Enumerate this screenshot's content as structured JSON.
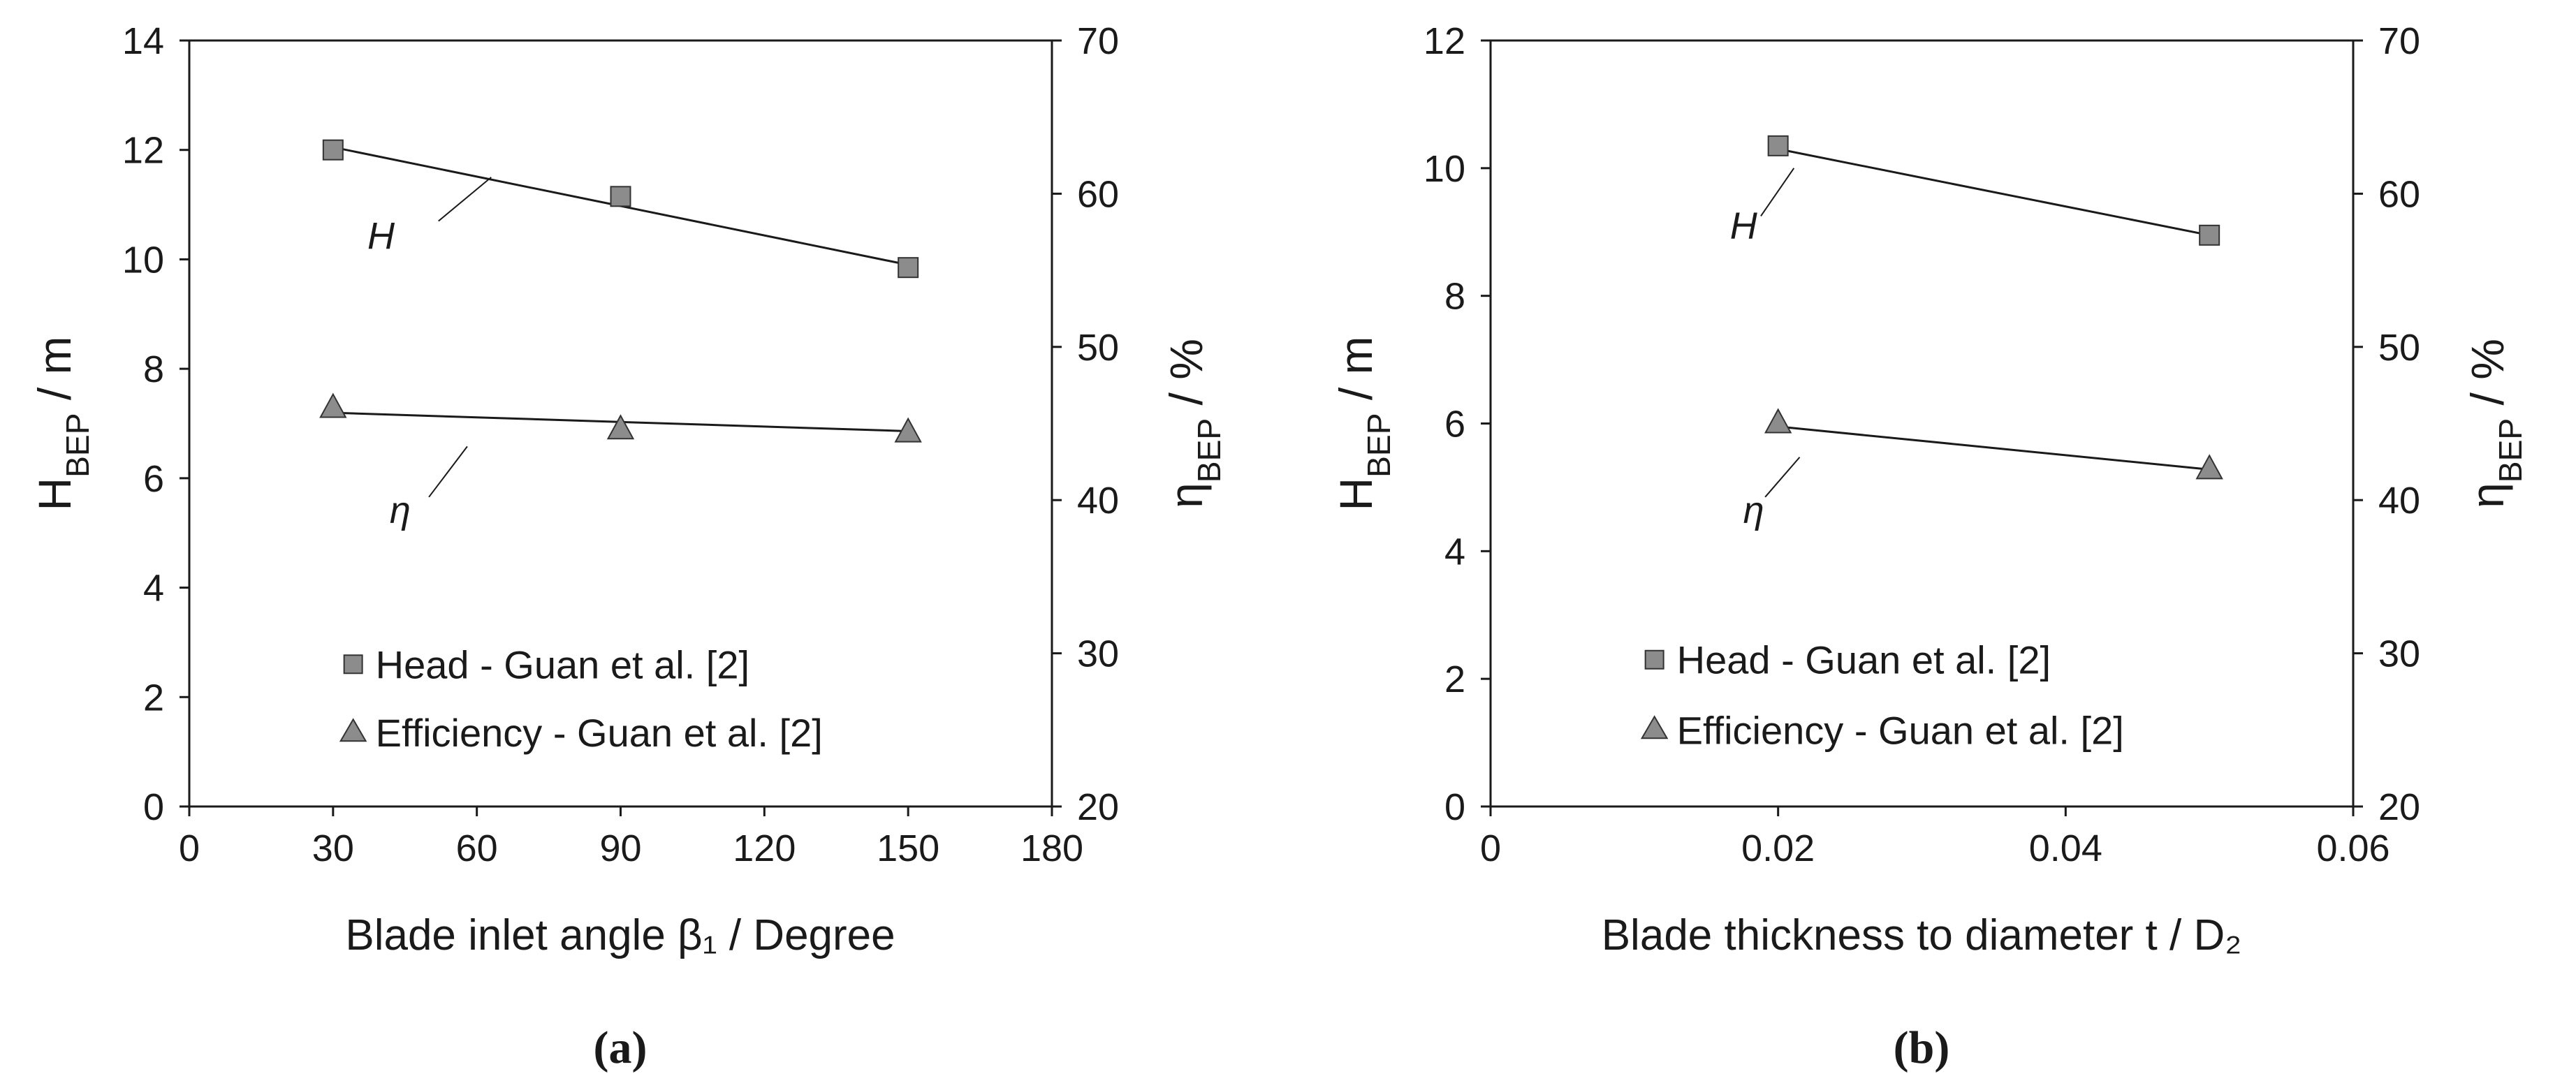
{
  "figure": {
    "background": "#ffffff",
    "axis_color": "#1a1a1a",
    "marker_fill": "#8c8c8c",
    "marker_stroke": "#333333",
    "trend_color": "#1a1a1a"
  },
  "chart_data": [
    {
      "type": "scatter",
      "panel_label": "(a)",
      "xlabel": "Blade inlet angle β₁ / Degree",
      "ylabel_left": "H_BEP / m",
      "ylabel_right": "η_BEP / %",
      "xlim": [
        0,
        180
      ],
      "xticks": [
        0,
        30,
        60,
        90,
        120,
        150,
        180
      ],
      "ylim_left": [
        0,
        14
      ],
      "yticks_left": [
        0,
        2,
        4,
        6,
        8,
        10,
        12,
        14
      ],
      "ylim_right": [
        20,
        70
      ],
      "yticks_right": [
        20,
        30,
        40,
        50,
        60,
        70
      ],
      "grid": false,
      "legend_position": "bottom-center",
      "series": [
        {
          "name": "Head - Guan et al. [2]",
          "marker": "square",
          "axis": "left",
          "x": [
            30,
            90,
            150
          ],
          "y": [
            12.0,
            11.15,
            9.85
          ],
          "trend": [
            [
              30,
              12.05
            ],
            [
              150,
              9.9
            ]
          ]
        },
        {
          "name": "Efficiency - Guan et al. [2]",
          "marker": "triangle",
          "axis": "right",
          "x": [
            30,
            90,
            150
          ],
          "y": [
            46.0,
            44.6,
            44.4
          ],
          "trend": [
            [
              30,
              45.7
            ],
            [
              150,
              44.5
            ]
          ]
        }
      ],
      "annotations": [
        {
          "text": "H",
          "series": 0
        },
        {
          "text": "η",
          "series": 1
        }
      ]
    },
    {
      "type": "scatter",
      "panel_label": "(b)",
      "xlabel": "Blade thickness to diameter t / D₂",
      "ylabel_left": "H_BEP / m",
      "ylabel_right": "η_BEP / %",
      "xlim": [
        0,
        0.06
      ],
      "xticks": [
        "0",
        "0.02",
        "0.04",
        "0.06"
      ],
      "xtick_values": [
        0,
        0.02,
        0.04,
        0.06
      ],
      "ylim_left": [
        0,
        12
      ],
      "yticks_left": [
        0,
        2,
        4,
        6,
        8,
        10,
        12
      ],
      "ylim_right": [
        20,
        70
      ],
      "yticks_right": [
        20,
        30,
        40,
        50,
        60,
        70
      ],
      "grid": false,
      "legend_position": "bottom-center",
      "series": [
        {
          "name": "Head - Guan et al. [2]",
          "marker": "square",
          "axis": "left",
          "x": [
            0.02,
            0.05
          ],
          "y": [
            10.35,
            8.95
          ],
          "trend": [
            [
              0.02,
              10.3
            ],
            [
              0.05,
              8.95
            ]
          ]
        },
        {
          "name": "Efficiency - Guan et al. [2]",
          "marker": "triangle",
          "axis": "right",
          "x": [
            0.02,
            0.05
          ],
          "y": [
            45.0,
            42.0
          ],
          "trend": [
            [
              0.02,
              44.8
            ],
            [
              0.05,
              42.0
            ]
          ]
        }
      ],
      "annotations": [
        {
          "text": "H",
          "series": 0
        },
        {
          "text": "η",
          "series": 1
        }
      ]
    }
  ]
}
